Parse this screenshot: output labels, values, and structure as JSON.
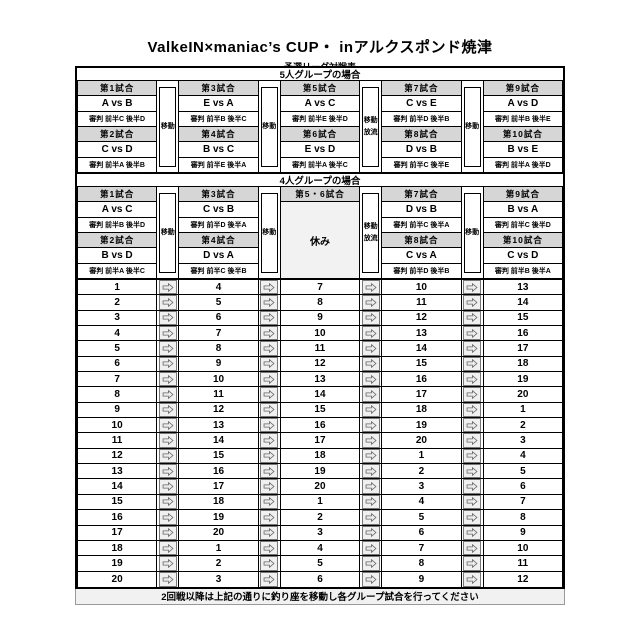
{
  "page": {
    "title": "ValkeIN×maniac’s CUP・ inアルクスポンド焼津",
    "subtitle": "予選リーグ対戦表",
    "footer_note": "2回戦以降は上記の通りに釣り座を移動し各グループ試合を行ってください"
  },
  "labels": {
    "referee_prefix": "審判",
    "move": "移動",
    "release": "放流",
    "rest": "休み"
  },
  "colors": {
    "match_header_bg": "#d6d6d6",
    "rest_bg": "#f2f2f2",
    "arrow_cell_bg": "#f0f0f0",
    "footer_bg": "#f1f1f1",
    "border": "#000000"
  },
  "icons": {
    "move_arrow": "⇨"
  },
  "sections": [
    {
      "header": "5人グループの場合",
      "columns": [
        {
          "type": "matches",
          "matches": [
            {
              "title": "第1試合",
              "versus": "A vs B",
              "referee": "審判 前半C 後半D"
            },
            {
              "title": "第2試合",
              "versus": "C vs D",
              "referee": "審判 前半A 後半B"
            }
          ]
        },
        {
          "type": "gutter",
          "lines": [
            "移動"
          ]
        },
        {
          "type": "matches",
          "matches": [
            {
              "title": "第3試合",
              "versus": "E vs A",
              "referee": "審判 前半B 後半C"
            },
            {
              "title": "第4試合",
              "versus": "B vs C",
              "referee": "審判 前半E 後半A"
            }
          ]
        },
        {
          "type": "gutter",
          "lines": [
            "移動"
          ]
        },
        {
          "type": "matches",
          "matches": [
            {
              "title": "第5試合",
              "versus": "A vs C",
              "referee": "審判 前半E 後半D"
            },
            {
              "title": "第6試合",
              "versus": "E vs D",
              "referee": "審判 前半A 後半C"
            }
          ]
        },
        {
          "type": "gutter",
          "lines": [
            "移動",
            "放流"
          ]
        },
        {
          "type": "matches",
          "matches": [
            {
              "title": "第7試合",
              "versus": "C vs E",
              "referee": "審判 前半D 後半B"
            },
            {
              "title": "第8試合",
              "versus": "D vs B",
              "referee": "審判 前半C 後半E"
            }
          ]
        },
        {
          "type": "gutter",
          "lines": [
            "移動"
          ]
        },
        {
          "type": "matches",
          "matches": [
            {
              "title": "第9試合",
              "versus": "A vs D",
              "referee": "審判 前半B 後半E"
            },
            {
              "title": "第10試合",
              "versus": "B vs E",
              "referee": "審判 前半A 後半D"
            }
          ]
        }
      ]
    },
    {
      "header": "4人グループの場合",
      "columns": [
        {
          "type": "matches",
          "matches": [
            {
              "title": "第1試合",
              "versus": "A vs C",
              "referee": "審判 前半B 後半D"
            },
            {
              "title": "第2試合",
              "versus": "B vs D",
              "referee": "審判 前半A 後半C"
            }
          ]
        },
        {
          "type": "gutter",
          "lines": [
            "移動"
          ]
        },
        {
          "type": "matches",
          "matches": [
            {
              "title": "第3試合",
              "versus": "C vs B",
              "referee": "審判 前半D 後半A"
            },
            {
              "title": "第4試合",
              "versus": "D vs A",
              "referee": "審判 前半C 後半B"
            }
          ]
        },
        {
          "type": "gutter",
          "lines": [
            "移動"
          ]
        },
        {
          "type": "rest",
          "title": "第5・6試合",
          "label": "休み"
        },
        {
          "type": "gutter",
          "lines": [
            "移動",
            "放流"
          ]
        },
        {
          "type": "matches",
          "matches": [
            {
              "title": "第7試合",
              "versus": "D vs B",
              "referee": "審判 前半C 後半A"
            },
            {
              "title": "第8試合",
              "versus": "C vs A",
              "referee": "審判 前半D 後半B"
            }
          ]
        },
        {
          "type": "gutter",
          "lines": [
            "移動"
          ]
        },
        {
          "type": "matches",
          "matches": [
            {
              "title": "第9試合",
              "versus": "B vs A",
              "referee": "審判 前半C 後半D"
            },
            {
              "title": "第10試合",
              "versus": "C vs D",
              "referee": "審判 前半B 後半A"
            }
          ]
        }
      ]
    }
  ],
  "rotation_table": {
    "rows": [
      [
        1,
        4,
        7,
        10,
        13
      ],
      [
        2,
        5,
        8,
        11,
        14
      ],
      [
        3,
        6,
        9,
        12,
        15
      ],
      [
        4,
        7,
        10,
        13,
        16
      ],
      [
        5,
        8,
        11,
        14,
        17
      ],
      [
        6,
        9,
        12,
        15,
        18
      ],
      [
        7,
        10,
        13,
        16,
        19
      ],
      [
        8,
        11,
        14,
        17,
        20
      ],
      [
        9,
        12,
        15,
        18,
        1
      ],
      [
        10,
        13,
        16,
        19,
        2
      ],
      [
        11,
        14,
        17,
        20,
        3
      ],
      [
        12,
        15,
        18,
        1,
        4
      ],
      [
        13,
        16,
        19,
        2,
        5
      ],
      [
        14,
        17,
        20,
        3,
        6
      ],
      [
        15,
        18,
        1,
        4,
        7
      ],
      [
        16,
        19,
        2,
        5,
        8
      ],
      [
        17,
        20,
        3,
        6,
        9
      ],
      [
        18,
        1,
        4,
        7,
        10
      ],
      [
        19,
        2,
        5,
        8,
        11
      ],
      [
        20,
        3,
        6,
        9,
        12
      ]
    ]
  }
}
